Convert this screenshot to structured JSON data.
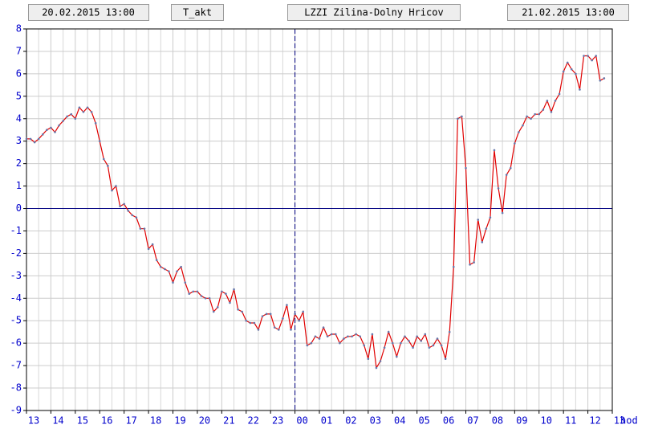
{
  "header": {
    "start": "20.02.2015 13:00",
    "variable": "T_akt",
    "station": "LZZI Zilina-Dolny Hricov",
    "end": "21.02.2015 13:00"
  },
  "chart_data": {
    "type": "line",
    "x_label": "hod",
    "color": "#e00000",
    "marker_color": "#6677aa",
    "grid": true,
    "vline": 660,
    "xlim": [
      0,
      1440
    ],
    "ylim": [
      -9,
      8
    ],
    "yticks": [
      -9,
      -8,
      -7,
      -6,
      -5,
      -4,
      -3,
      -2,
      -1,
      0,
      1,
      2,
      3,
      4,
      5,
      6,
      7,
      8
    ],
    "xticks": [
      {
        "value": 0,
        "label": "13"
      },
      {
        "value": 60,
        "label": "14"
      },
      {
        "value": 120,
        "label": "15"
      },
      {
        "value": 180,
        "label": "16"
      },
      {
        "value": 240,
        "label": "17"
      },
      {
        "value": 300,
        "label": "18"
      },
      {
        "value": 360,
        "label": "19"
      },
      {
        "value": 420,
        "label": "20"
      },
      {
        "value": 480,
        "label": "21"
      },
      {
        "value": 540,
        "label": "22"
      },
      {
        "value": 600,
        "label": "23"
      },
      {
        "value": 660,
        "label": "00"
      },
      {
        "value": 720,
        "label": "01"
      },
      {
        "value": 780,
        "label": "02"
      },
      {
        "value": 840,
        "label": "03"
      },
      {
        "value": 900,
        "label": "04"
      },
      {
        "value": 960,
        "label": "05"
      },
      {
        "value": 1020,
        "label": "06"
      },
      {
        "value": 1080,
        "label": "07"
      },
      {
        "value": 1140,
        "label": "08"
      },
      {
        "value": 1200,
        "label": "09"
      },
      {
        "value": 1260,
        "label": "10"
      },
      {
        "value": 1320,
        "label": "11"
      },
      {
        "value": 1380,
        "label": "12"
      },
      {
        "value": 1440,
        "label": "13"
      }
    ],
    "x": [
      0,
      10,
      20,
      30,
      40,
      50,
      60,
      70,
      80,
      90,
      100,
      110,
      120,
      130,
      140,
      150,
      160,
      170,
      180,
      190,
      200,
      210,
      220,
      230,
      240,
      250,
      260,
      270,
      280,
      290,
      300,
      310,
      320,
      330,
      340,
      350,
      360,
      370,
      380,
      390,
      400,
      410,
      420,
      430,
      440,
      450,
      460,
      470,
      480,
      490,
      500,
      510,
      520,
      530,
      540,
      550,
      560,
      570,
      580,
      590,
      600,
      610,
      620,
      630,
      640,
      650,
      660,
      670,
      680,
      690,
      700,
      710,
      720,
      730,
      740,
      750,
      760,
      770,
      780,
      790,
      800,
      810,
      820,
      830,
      840,
      850,
      860,
      870,
      880,
      890,
      900,
      910,
      920,
      930,
      940,
      950,
      960,
      970,
      980,
      990,
      1000,
      1010,
      1020,
      1030,
      1040,
      1050,
      1060,
      1070,
      1080,
      1090,
      1100,
      1110,
      1120,
      1130,
      1140,
      1150,
      1160,
      1170,
      1180,
      1190,
      1200,
      1210,
      1220,
      1230,
      1240,
      1250,
      1260,
      1270,
      1280,
      1290,
      1300,
      1310,
      1320,
      1330,
      1340,
      1350,
      1360,
      1370,
      1380,
      1390,
      1400,
      1410,
      1420
    ],
    "series": [
      {
        "values": [
          3.1,
          3.1,
          2.95,
          3.1,
          3.3,
          3.5,
          3.6,
          3.4,
          3.7,
          3.9,
          4.1,
          4.2,
          4.0,
          4.5,
          4.3,
          4.5,
          4.3,
          3.8,
          3.0,
          2.2,
          1.9,
          0.8,
          1.0,
          0.1,
          0.2,
          -0.1,
          -0.3,
          -0.4,
          -0.9,
          -0.9,
          -1.8,
          -1.6,
          -2.3,
          -2.6,
          -2.7,
          -2.8,
          -3.3,
          -2.8,
          -2.6,
          -3.3,
          -3.8,
          -3.7,
          -3.7,
          -3.9,
          -4.0,
          -4.0,
          -4.6,
          -4.4,
          -3.7,
          -3.8,
          -4.2,
          -3.6,
          -4.5,
          -4.6,
          -5.0,
          -5.1,
          -5.1,
          -5.4,
          -4.8,
          -4.7,
          -4.7,
          -5.3,
          -5.4,
          -4.9,
          -4.3,
          -5.4,
          -4.7,
          -5.0,
          -4.6,
          -6.1,
          -6.0,
          -5.7,
          -5.8,
          -5.3,
          -5.7,
          -5.6,
          -5.6,
          -6.0,
          -5.8,
          -5.7,
          -5.7,
          -5.6,
          -5.7,
          -6.1,
          -6.7,
          -5.6,
          -7.1,
          -6.8,
          -6.2,
          -5.5,
          -6.0,
          -6.6,
          -6.0,
          -5.7,
          -5.9,
          -6.2,
          -5.7,
          -5.9,
          -5.6,
          -6.2,
          -6.1,
          -5.8,
          -6.1,
          -6.7,
          -5.5,
          -2.6,
          4.0,
          4.1,
          1.8,
          -2.5,
          -2.4,
          -0.5,
          -1.5,
          -0.9,
          -0.4,
          2.6,
          0.9,
          -0.2,
          1.5,
          1.8,
          2.9,
          3.4,
          3.7,
          4.1,
          4.0,
          4.2,
          4.2,
          4.4,
          4.8,
          4.3,
          4.8,
          5.1,
          6.1,
          6.5,
          6.2,
          6.0,
          5.3,
          6.8,
          6.8,
          6.6,
          6.8,
          5.7,
          5.8
        ]
      }
    ]
  }
}
